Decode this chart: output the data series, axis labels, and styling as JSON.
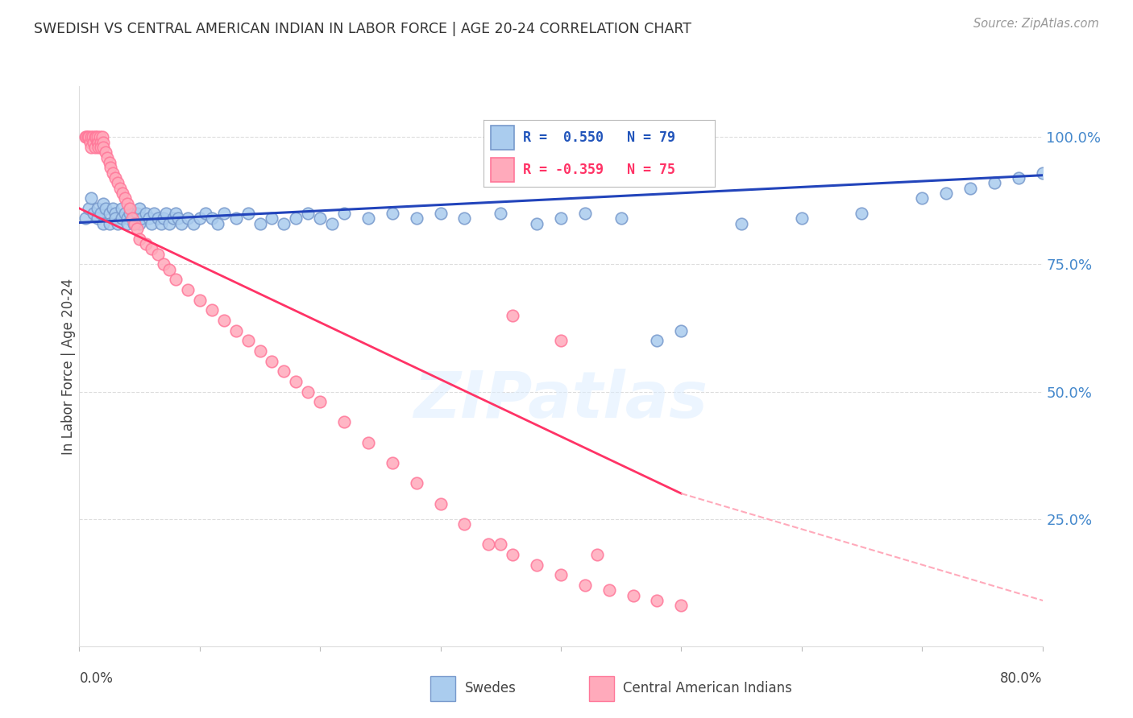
{
  "title": "SWEDISH VS CENTRAL AMERICAN INDIAN IN LABOR FORCE | AGE 20-24 CORRELATION CHART",
  "source": "Source: ZipAtlas.com",
  "ylabel": "In Labor Force | Age 20-24",
  "xmin": 0.0,
  "xmax": 0.8,
  "ymin": 0.0,
  "ymax": 1.1,
  "yticks": [
    0.25,
    0.5,
    0.75,
    1.0
  ],
  "ytick_labels": [
    "25.0%",
    "50.0%",
    "75.0%",
    "100.0%"
  ],
  "blue_scatter_color_face": "#AACCEE",
  "blue_scatter_color_edge": "#7799CC",
  "pink_scatter_color_face": "#FFAABB",
  "pink_scatter_color_edge": "#FF7799",
  "blue_line_color": "#2244BB",
  "pink_line_solid_color": "#FF3366",
  "pink_line_dash_color": "#FFAABB",
  "axis_label_color": "#4488CC",
  "title_color": "#333333",
  "source_color": "#999999",
  "grid_color": "#DDDDDD",
  "watermark_color": "#DDEEFF",
  "legend_label_blue": "Swedes",
  "legend_label_pink": "Central American Indians",
  "legend_r_blue": "R =  0.550",
  "legend_n_blue": "N = 79",
  "legend_r_pink": "R = -0.359",
  "legend_n_pink": "N = 75",
  "blue_x": [
    0.005,
    0.008,
    0.01,
    0.012,
    0.015,
    0.015,
    0.018,
    0.02,
    0.02,
    0.022,
    0.025,
    0.025,
    0.028,
    0.03,
    0.03,
    0.032,
    0.035,
    0.035,
    0.038,
    0.04,
    0.04,
    0.042,
    0.045,
    0.045,
    0.048,
    0.05,
    0.05,
    0.052,
    0.055,
    0.058,
    0.06,
    0.062,
    0.065,
    0.068,
    0.07,
    0.072,
    0.075,
    0.078,
    0.08,
    0.082,
    0.085,
    0.09,
    0.095,
    0.1,
    0.105,
    0.11,
    0.115,
    0.12,
    0.13,
    0.14,
    0.15,
    0.16,
    0.17,
    0.18,
    0.19,
    0.2,
    0.21,
    0.22,
    0.24,
    0.26,
    0.28,
    0.3,
    0.32,
    0.35,
    0.38,
    0.4,
    0.42,
    0.45,
    0.48,
    0.5,
    0.55,
    0.6,
    0.65,
    0.7,
    0.72,
    0.74,
    0.76,
    0.78,
    0.8
  ],
  "blue_y": [
    0.84,
    0.86,
    0.88,
    0.85,
    0.86,
    0.84,
    0.85,
    0.87,
    0.83,
    0.86,
    0.85,
    0.83,
    0.86,
    0.85,
    0.84,
    0.83,
    0.86,
    0.84,
    0.85,
    0.84,
    0.83,
    0.85,
    0.84,
    0.83,
    0.85,
    0.86,
    0.83,
    0.84,
    0.85,
    0.84,
    0.83,
    0.85,
    0.84,
    0.83,
    0.84,
    0.85,
    0.83,
    0.84,
    0.85,
    0.84,
    0.83,
    0.84,
    0.83,
    0.84,
    0.85,
    0.84,
    0.83,
    0.85,
    0.84,
    0.85,
    0.83,
    0.84,
    0.83,
    0.84,
    0.85,
    0.84,
    0.83,
    0.85,
    0.84,
    0.85,
    0.84,
    0.85,
    0.84,
    0.85,
    0.83,
    0.84,
    0.85,
    0.84,
    0.6,
    0.62,
    0.83,
    0.84,
    0.85,
    0.88,
    0.89,
    0.9,
    0.91,
    0.92,
    0.93
  ],
  "pink_x": [
    0.005,
    0.006,
    0.007,
    0.008,
    0.009,
    0.01,
    0.01,
    0.011,
    0.012,
    0.013,
    0.013,
    0.014,
    0.015,
    0.015,
    0.016,
    0.016,
    0.017,
    0.018,
    0.018,
    0.019,
    0.02,
    0.02,
    0.022,
    0.023,
    0.025,
    0.026,
    0.028,
    0.03,
    0.032,
    0.034,
    0.036,
    0.038,
    0.04,
    0.042,
    0.044,
    0.046,
    0.048,
    0.05,
    0.055,
    0.06,
    0.065,
    0.07,
    0.075,
    0.08,
    0.09,
    0.1,
    0.11,
    0.12,
    0.13,
    0.14,
    0.15,
    0.16,
    0.17,
    0.18,
    0.19,
    0.2,
    0.22,
    0.24,
    0.26,
    0.28,
    0.3,
    0.32,
    0.34,
    0.36,
    0.38,
    0.4,
    0.42,
    0.44,
    0.46,
    0.48,
    0.5,
    0.36,
    0.4,
    0.43,
    0.35
  ],
  "pink_y": [
    1.0,
    1.0,
    1.0,
    1.0,
    0.99,
    1.0,
    0.98,
    1.0,
    0.99,
    1.0,
    0.98,
    1.0,
    0.99,
    1.0,
    0.99,
    0.98,
    1.0,
    0.99,
    0.98,
    1.0,
    0.99,
    0.98,
    0.97,
    0.96,
    0.95,
    0.94,
    0.93,
    0.92,
    0.91,
    0.9,
    0.89,
    0.88,
    0.87,
    0.86,
    0.84,
    0.83,
    0.82,
    0.8,
    0.79,
    0.78,
    0.77,
    0.75,
    0.74,
    0.72,
    0.7,
    0.68,
    0.66,
    0.64,
    0.62,
    0.6,
    0.58,
    0.56,
    0.54,
    0.52,
    0.5,
    0.48,
    0.44,
    0.4,
    0.36,
    0.32,
    0.28,
    0.24,
    0.2,
    0.18,
    0.16,
    0.14,
    0.12,
    0.11,
    0.1,
    0.09,
    0.08,
    0.65,
    0.6,
    0.18,
    0.2
  ]
}
